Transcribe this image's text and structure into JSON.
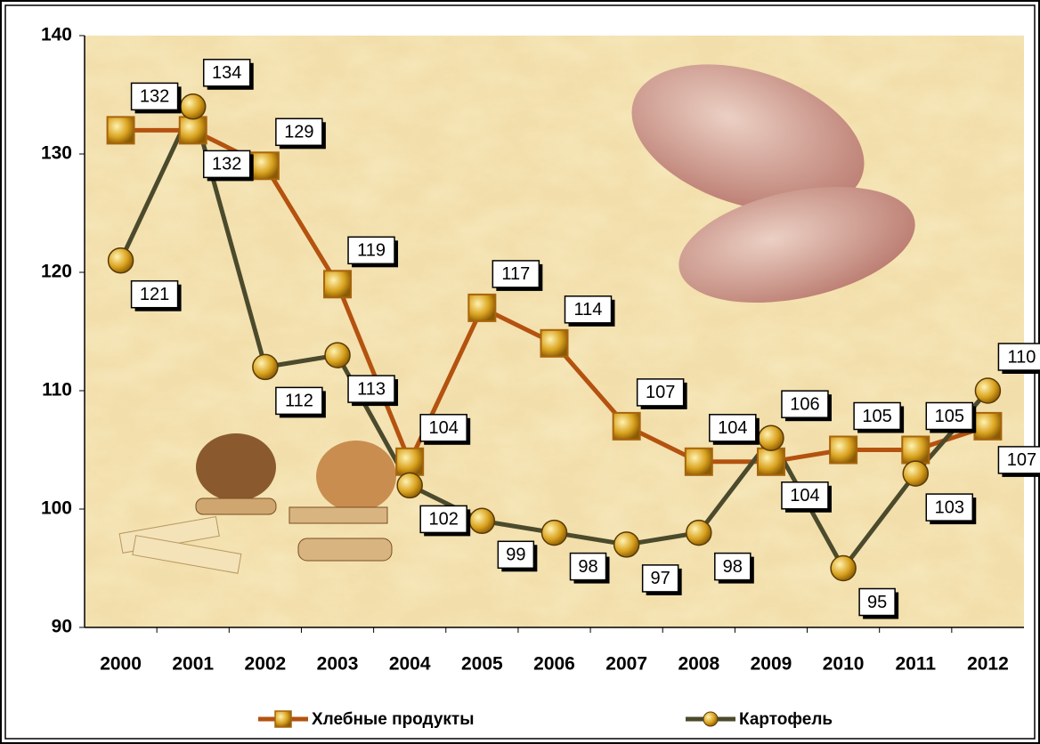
{
  "chart_data": {
    "type": "line",
    "categories": [
      "2000",
      "2001",
      "2002",
      "2003",
      "2004",
      "2005",
      "2006",
      "2007",
      "2008",
      "2009",
      "2010",
      "2011",
      "2012"
    ],
    "series": [
      {
        "name": "Хлебные продукты",
        "color": "#b4520f",
        "values": [
          132,
          132,
          129,
          119,
          104,
          117,
          114,
          107,
          104,
          104,
          105,
          105,
          107
        ]
      },
      {
        "name": "Картофель",
        "color": "#4b4a2c",
        "values": [
          121,
          134,
          112,
          113,
          102,
          99,
          98,
          97,
          98,
          106,
          95,
          103,
          110
        ]
      }
    ],
    "ylim": [
      90,
      140
    ],
    "yticks": [
      90,
      100,
      110,
      120,
      130,
      140
    ],
    "legend": "bottom"
  }
}
